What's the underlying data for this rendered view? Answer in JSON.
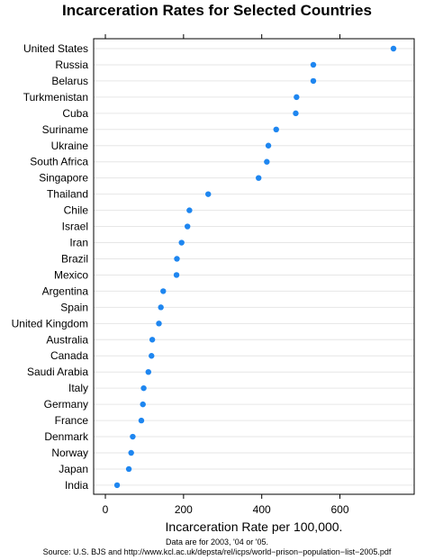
{
  "chart_data": {
    "type": "scatter",
    "title": "Incarceration Rates for Selected Countries",
    "xlabel": "Incarceration Rate per 100,000.",
    "ylabel": "",
    "xlim": [
      -30,
      790
    ],
    "x_ticks": [
      0,
      200,
      400,
      600
    ],
    "grid": true,
    "categories": [
      "United States",
      "Russia",
      "Belarus",
      "Turkmenistan",
      "Cuba",
      "Suriname",
      "Ukraine",
      "South Africa",
      "Singapore",
      "Thailand",
      "Chile",
      "Israel",
      "Iran",
      "Brazil",
      "Mexico",
      "Argentina",
      "Spain",
      "United Kingdom",
      "Australia",
      "Canada",
      "Saudi Arabia",
      "Italy",
      "Germany",
      "France",
      "Denmark",
      "Norway",
      "Japan",
      "India"
    ],
    "values": [
      737,
      532,
      532,
      489,
      487,
      437,
      417,
      413,
      392,
      263,
      215,
      210,
      195,
      183,
      182,
      148,
      142,
      137,
      120,
      118,
      110,
      98,
      96,
      92,
      70,
      66,
      60,
      30
    ],
    "point_color": "#1e86f0",
    "notes": [
      "Data are for 2003, '04 or '05.",
      "Source: U.S. BJS and http://www.kcl.ac.uk/depsta/rel/icps/world−prison−population−list−2005.pdf"
    ]
  }
}
